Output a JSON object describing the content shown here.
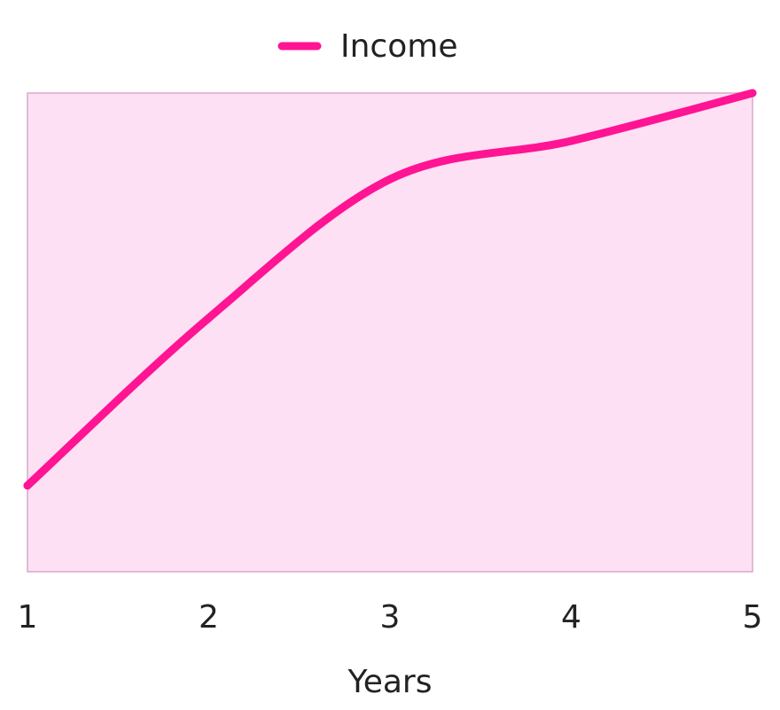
{
  "chart_data": {
    "type": "line",
    "x": [
      1,
      2,
      3,
      4,
      5
    ],
    "series": [
      {
        "name": "Income",
        "values": [
          18,
          53,
          82,
          90,
          100
        ],
        "color": "#ff1493"
      }
    ],
    "xlabel": "Years",
    "ylabel": "",
    "title": "",
    "xlim": [
      1,
      5
    ],
    "ylim": [
      0,
      100
    ],
    "x_ticks": [
      "1",
      "2",
      "3",
      "4",
      "5"
    ],
    "y_ticks": [],
    "grid": false,
    "legend_position": "top-center",
    "plot_background": "#fde0f3",
    "plot_border_color": "#d9a9c6",
    "curve": "smooth"
  }
}
